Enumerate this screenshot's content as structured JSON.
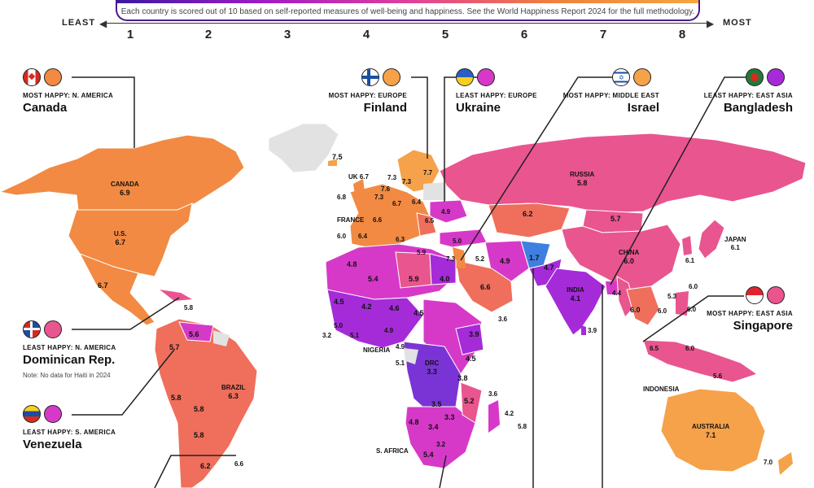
{
  "header": {
    "subtitle": "Each country is scored out of 10 based on self-reported measures of well-being and happiness. See the World Happiness Report 2024 for the full methodology.",
    "least": "LEAST",
    "most": "MOST",
    "ticks": [
      "1",
      "2",
      "3",
      "4",
      "5",
      "6",
      "7",
      "8"
    ],
    "gradient_colors": [
      "#3a1aa0",
      "#a01ac8",
      "#e0409a",
      "#f0803c",
      "#f5a640"
    ]
  },
  "callouts": {
    "canada": {
      "caption": "MOST HAPPY: N. AMERICA",
      "name": "Canada"
    },
    "finland": {
      "caption": "MOST HAPPY: EUROPE",
      "name": "Finland"
    },
    "ukraine": {
      "caption": "LEAST HAPPY: EUROPE",
      "name": "Ukraine"
    },
    "israel": {
      "caption": "MOST HAPPY: MIDDLE EAST",
      "name": "Israel"
    },
    "bangladesh": {
      "caption": "LEAST HAPPY: EAST ASIA",
      "name": "Bangladesh"
    },
    "singapore": {
      "caption": "MOST HAPPY: EAST ASIA",
      "name": "Singapore"
    },
    "dominican": {
      "caption": "LEAST HAPPY: N. AMERICA",
      "name": "Dominican Rep.",
      "note": "Note: No data for Haiti in 2024"
    },
    "venezuela": {
      "caption": "LEAST HAPPY: S. AMERICA",
      "name": "Venezuela"
    }
  },
  "map_labels": {
    "canada": "CANADA",
    "canada_v": "6.9",
    "us": "U.S.",
    "us_v": "6.7",
    "mexico_v": "6.7",
    "greenland_v": "7.5",
    "uk": "UK 6.7",
    "ireland_v": "6.8",
    "france": "FRANCE",
    "iberia_v": "6.0",
    "spain_v": "6.4",
    "italy_v": "6.3",
    "norway_v": "7.3",
    "sweden_v": "7.3",
    "finland_v": "7.7",
    "denmark_v": "7.6",
    "nl_v": "7.3",
    "de_v": "6.7",
    "pl_v": "6.4",
    "ukraine_v": "4.9",
    "balkan_v": "6.5",
    "fr_v": "6.6",
    "russia": "RUSSIA",
    "russia_v": "5.8",
    "kaz_v": "6.2",
    "mongolia_v": "5.7",
    "china": "CHINA",
    "china_v": "6.0",
    "japan": "JAPAN",
    "japan_v": "6.1",
    "korea_v": "6.1",
    "taiwan_v": "6.0",
    "turkey_v": "5.0",
    "greece_v": "5.9",
    "israel_v": "7.3",
    "jordan_v": "5.2",
    "iran_v": "4.9",
    "afg_v": "1.7",
    "pak_v": "4.7",
    "india": "INDIA",
    "india_v": "4.1",
    "srilanka_v": "3.9",
    "bangla_v": "4.4",
    "thai_v": "6.0",
    "vietnam_v": "6.0",
    "phil_v": "5.3",
    "myanmar_v": "6.0",
    "sg_v": "6.5",
    "indo_v": "6.0",
    "png_v": "5.6",
    "indonesia": "INDONESIA",
    "saudi_v": "6.6",
    "yemen_v": "3.6",
    "algeria_v": "5.4",
    "morocco_v": "4.8",
    "libya_v": "5.9",
    "egypt_v": "4.0",
    "mali_v": "4.5",
    "niger_v": "4.2",
    "chad_v": "4.6",
    "sudan_v": "4.5",
    "senegal_v": "5.0",
    "guinea_v": "5.1",
    "sl_v": "3.2",
    "ghana_v": "4.9",
    "nigeria": "NIGERIA",
    "nigeria_v": "4.9",
    "cam_v": "5.1",
    "ethiopia_v": "3.9",
    "kenya_v": "4.5",
    "drc": "DRC",
    "drc_v": "3.3",
    "tanzania_v": "3.8",
    "moz_v": "5.2",
    "zambia_v": "3.5",
    "zimb_v": "3.3",
    "namibia_v": "4.8",
    "botswana_v": "3.4",
    "lesotho_v": "3.2",
    "safrica": "S. AFRICA",
    "safrica_v": "5.4",
    "comoros_v": "3.6",
    "madag_v": "4.2",
    "mauritius_v": "5.8",
    "brazil": "BRAZIL",
    "brazil_v": "6.3",
    "colombia_v": "5.7",
    "venez_v": "5.6",
    "ecuador_v": "5.8",
    "peru_v": "5.8",
    "bolivia_v": "5.8",
    "chile_v": "6.2",
    "uruguay_v": "6.6",
    "dr_v": "5.8",
    "australia": "AUSTRALIA",
    "australia_v": "7.1",
    "nz_v": "7.0"
  },
  "colors": {
    "most_orange": "#f5a24a",
    "orange": "#f28a43",
    "salmon": "#ef6f5c",
    "pink": "#e9558f",
    "magenta": "#d639c8",
    "purple": "#a52bd9",
    "violet": "#7a34d6",
    "blue": "#3f7fe0",
    "nodata": "#e2e2e2"
  }
}
